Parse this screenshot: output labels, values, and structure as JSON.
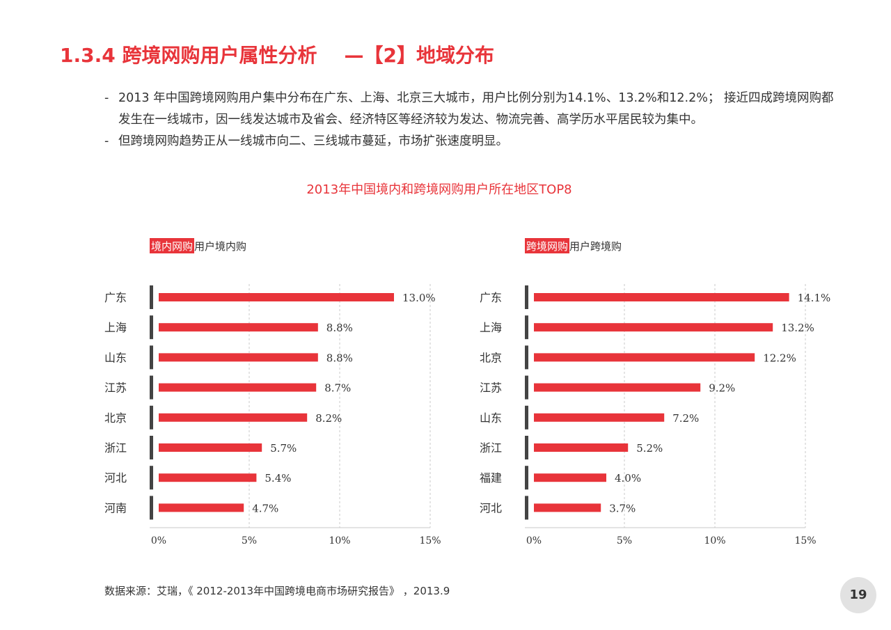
{
  "header": {
    "title": "1.3.4 跨境网购用户属性分析    —【2】地域分布"
  },
  "bullets": [
    "2013 年中国跨境网购用户集中分布在广东、上海、北京三大城市，用户比例分别为14.1%、13.2%和12.2%； 接近四成跨境网购都发生在一线城市，因一线发达城市及省会、经济特区等经济较为发达、物流完善、高学历水平居民较为集中。",
    "但跨境网购趋势正从一线城市向二、三线城市蔓延，市场扩张速度明显。"
  ],
  "bullet_marker": "-",
  "chart_data": [
    {
      "type": "bar",
      "orientation": "horizontal",
      "title": "2013年中国境内和跨境网购用户所在地区TOP8",
      "legend_tag": "境内网购",
      "legend_text": "用户境内购",
      "categories": [
        "广东",
        "上海",
        "山东",
        "江苏",
        "北京",
        "浙江",
        "河北",
        "河南"
      ],
      "values": [
        13.0,
        8.8,
        8.8,
        8.7,
        8.2,
        5.7,
        5.4,
        4.7
      ],
      "value_labels": [
        "13.0%",
        "8.8%",
        "8.8%",
        "8.7%",
        "8.2%",
        "5.7%",
        "5.4%",
        "4.7%"
      ],
      "xlim": [
        0,
        15
      ],
      "xticks": [
        "0%",
        "5%",
        "10%",
        "15%"
      ],
      "grid": true,
      "bar_color": "#e8343a"
    },
    {
      "type": "bar",
      "orientation": "horizontal",
      "legend_tag": "跨境网购",
      "legend_text": "用户跨境购",
      "categories": [
        "广东",
        "上海",
        "北京",
        "江苏",
        "山东",
        "浙江",
        "福建",
        "河北"
      ],
      "values": [
        14.1,
        13.2,
        12.2,
        9.2,
        7.2,
        5.2,
        4.0,
        3.7
      ],
      "value_labels": [
        "14.1%",
        "13.2%",
        "12.2%",
        "9.2%",
        "7.2%",
        "5.2%",
        "4.0%",
        "3.7%"
      ],
      "xlim": [
        0,
        15
      ],
      "xticks": [
        "0%",
        "5%",
        "10%",
        "15%"
      ],
      "grid": true,
      "bar_color": "#e8343a"
    }
  ],
  "footer": {
    "source": "数据来源：艾瑞，《 2012-2013年中国跨境电商市场研究报告》 ，2013.9",
    "page_number": "19"
  }
}
